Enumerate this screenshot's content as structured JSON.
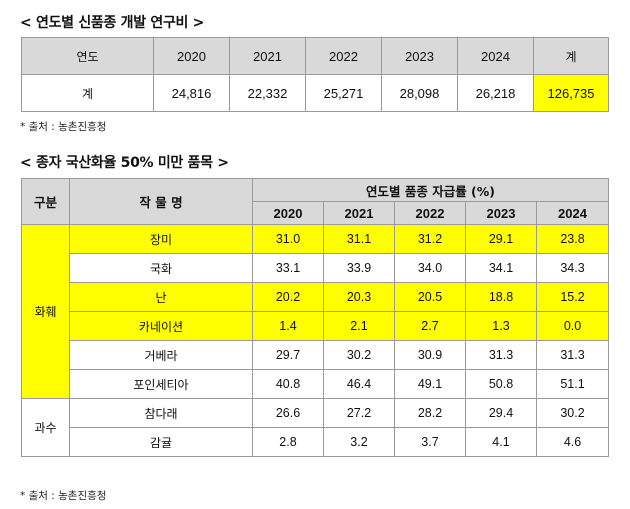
{
  "section1": {
    "title": "< 연도별 신품종 개발 연구비 >",
    "header": [
      "연도",
      "2020",
      "2021",
      "2022",
      "2023",
      "2024",
      "계"
    ],
    "row": [
      "계",
      "24,816",
      "22,332",
      "25,271",
      "28,098",
      "26,218",
      "126,735"
    ],
    "source": "* 출처 : 농촌진흥청",
    "highlight_color": "#ffff00"
  },
  "section2": {
    "title": "< 종자 국산화율 50% 미만 품목 >",
    "col_category": "구분",
    "col_crop": "작 물 명",
    "col_group": "연도별 품종 자급률 (%)",
    "years": [
      "2020",
      "2021",
      "2022",
      "2023",
      "2024"
    ],
    "groups": [
      {
        "name": "화훼",
        "rows": [
          {
            "crop": "장미",
            "values": [
              "31.0",
              "31.1",
              "31.2",
              "29.1",
              "23.8"
            ],
            "highlight": true
          },
          {
            "crop": "국화",
            "values": [
              "33.1",
              "33.9",
              "34.0",
              "34.1",
              "34.3"
            ],
            "highlight": false
          },
          {
            "crop": "난",
            "values": [
              "20.2",
              "20.3",
              "20.5",
              "18.8",
              "15.2"
            ],
            "highlight": true
          },
          {
            "crop": "카네이션",
            "values": [
              "1.4",
              "2.1",
              "2.7",
              "1.3",
              "0.0"
            ],
            "highlight": true
          },
          {
            "crop": "거베라",
            "values": [
              "29.7",
              "30.2",
              "30.9",
              "31.3",
              "31.3"
            ],
            "highlight": false
          },
          {
            "crop": "포인세티아",
            "values": [
              "40.8",
              "46.4",
              "49.1",
              "50.8",
              "51.1"
            ],
            "highlight": false
          }
        ]
      },
      {
        "name": "과수",
        "rows": [
          {
            "crop": "참다래",
            "values": [
              "26.6",
              "27.2",
              "28.2",
              "29.4",
              "30.2"
            ],
            "highlight": false
          },
          {
            "crop": "감귤",
            "values": [
              "2.8",
              "3.2",
              "3.7",
              "4.1",
              "4.6"
            ],
            "highlight": false
          }
        ]
      }
    ],
    "source": "* 출처 : 농촌진흥청"
  }
}
